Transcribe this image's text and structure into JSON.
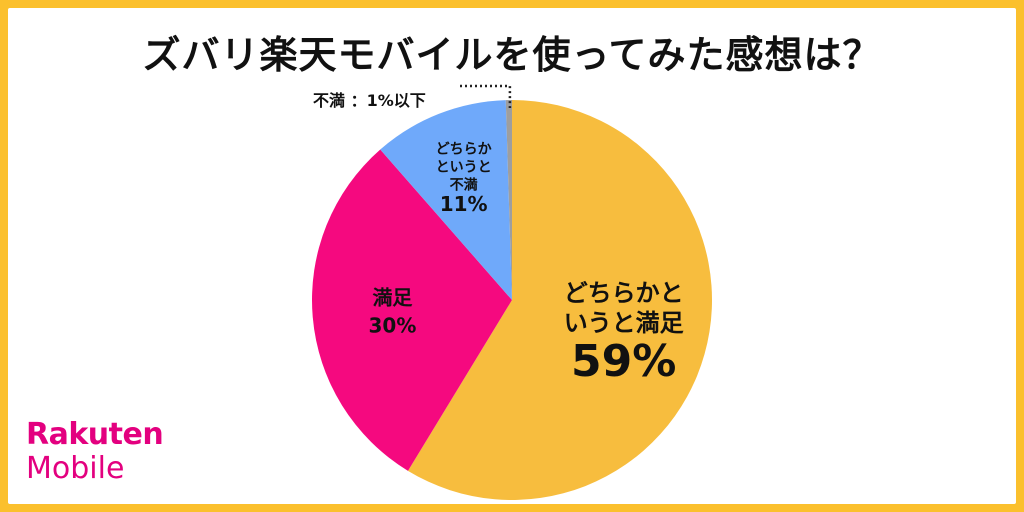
{
  "title": "ズバリ楽天モバイルを使ってみた感想は？",
  "logo": {
    "line1": "Rakuten",
    "line2": "Mobile"
  },
  "chart_data": {
    "type": "pie",
    "start_angle_deg": 0,
    "direction": "clockwise",
    "slices": [
      {
        "name": "どちらかというと満足",
        "label_lines": [
          "どちらかと",
          "いうと満足"
        ],
        "pct_label": "59%",
        "value": 59,
        "color": "#F7BD3E"
      },
      {
        "name": "満足",
        "label_lines": [
          "満足"
        ],
        "pct_label": "30%",
        "value": 30,
        "color": "#F5097F"
      },
      {
        "name": "どちらかというと不満",
        "label_lines": [
          "どちらか",
          "というと",
          "不満"
        ],
        "pct_label": "11%",
        "value": 11,
        "color": "#6FA9FA"
      },
      {
        "name": "不満",
        "label_lines": [],
        "pct_label": "",
        "value": 0.5,
        "color": "#9E9E9E"
      }
    ],
    "callout": {
      "text": "不満 ：1%以下"
    }
  }
}
